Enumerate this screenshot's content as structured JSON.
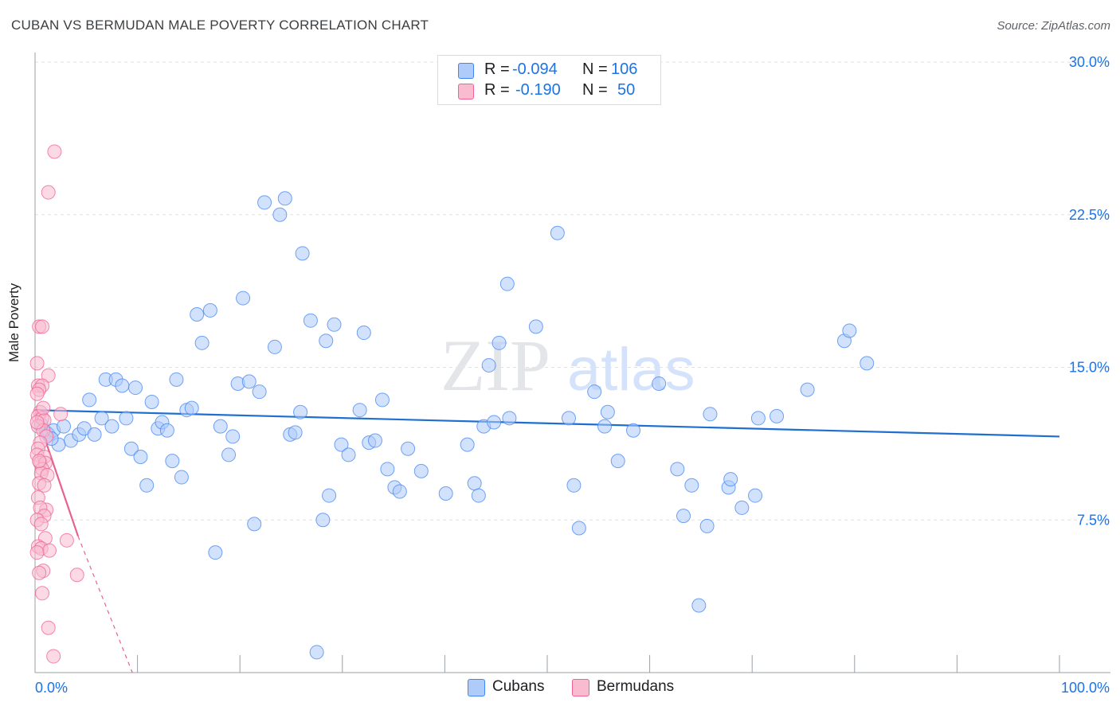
{
  "header": {
    "title": "CUBAN VS BERMUDAN MALE POVERTY CORRELATION CHART",
    "source": "Source: ZipAtlas.com"
  },
  "watermark": {
    "zip": "ZIP",
    "atlas": "atlas"
  },
  "legend": {
    "rows": [
      {
        "name": "Cubans",
        "r_label": "R =",
        "r_value": "-0.094",
        "n_label": "N =",
        "n_value": "106",
        "color": "#aecbfa"
      },
      {
        "name": "Bermudans",
        "r_label": "R =",
        "r_value": "-0.190",
        "n_label": "N =",
        "n_value": "50",
        "color": "#f8bbd0"
      }
    ]
  },
  "chart_data": {
    "type": "scatter",
    "title": "CUBAN VS BERMUDAN MALE POVERTY CORRELATION CHART",
    "xlabel": "",
    "ylabel": "Male Poverty",
    "xlim": [
      0,
      100
    ],
    "ylim": [
      0,
      30
    ],
    "x_tick_labels": [
      "0.0%",
      "100.0%"
    ],
    "y_ticks": [
      7.5,
      15,
      22.5,
      30
    ],
    "y_tick_labels": [
      "7.5%",
      "15.0%",
      "22.5%",
      "30.0%"
    ],
    "grid": "horizontal dashed",
    "legend_position": "top-center",
    "series": [
      {
        "name": "Cubans",
        "color": "#4285f4",
        "fill": "#aecbfa",
        "trend": {
          "x": [
            0,
            100
          ],
          "y": [
            12.9,
            11.6
          ],
          "color": "#1f6fd1"
        },
        "points": [
          [
            0.6,
            12.2
          ],
          [
            1.1,
            11.8
          ],
          [
            1.3,
            11.7
          ],
          [
            1.8,
            11.9
          ],
          [
            2.3,
            11.2
          ],
          [
            2.8,
            12.1
          ],
          [
            3.5,
            11.4
          ],
          [
            4.3,
            11.7
          ],
          [
            4.8,
            12.0
          ],
          [
            5.3,
            13.4
          ],
          [
            5.8,
            11.7
          ],
          [
            6.5,
            12.5
          ],
          [
            6.9,
            14.4
          ],
          [
            7.5,
            12.1
          ],
          [
            7.9,
            14.4
          ],
          [
            8.5,
            14.1
          ],
          [
            8.9,
            12.5
          ],
          [
            9.4,
            11.0
          ],
          [
            9.8,
            14.0
          ],
          [
            10.3,
            10.6
          ],
          [
            10.9,
            9.2
          ],
          [
            11.4,
            13.3
          ],
          [
            12.0,
            12.0
          ],
          [
            12.4,
            12.3
          ],
          [
            12.9,
            11.9
          ],
          [
            13.4,
            10.4
          ],
          [
            13.8,
            14.4
          ],
          [
            14.3,
            9.6
          ],
          [
            14.8,
            12.9
          ],
          [
            15.3,
            13.0
          ],
          [
            15.8,
            17.6
          ],
          [
            16.3,
            16.2
          ],
          [
            17.1,
            17.8
          ],
          [
            17.6,
            5.9
          ],
          [
            18.1,
            12.1
          ],
          [
            18.9,
            10.7
          ],
          [
            19.3,
            11.6
          ],
          [
            19.8,
            14.2
          ],
          [
            20.3,
            18.4
          ],
          [
            20.9,
            14.3
          ],
          [
            21.4,
            7.3
          ],
          [
            21.9,
            13.8
          ],
          [
            22.4,
            23.1
          ],
          [
            23.4,
            16.0
          ],
          [
            23.9,
            22.5
          ],
          [
            24.4,
            23.3
          ],
          [
            24.9,
            11.7
          ],
          [
            25.4,
            11.8
          ],
          [
            25.9,
            12.8
          ],
          [
            26.1,
            20.6
          ],
          [
            26.9,
            17.3
          ],
          [
            27.5,
            1.0
          ],
          [
            28.1,
            7.5
          ],
          [
            28.4,
            16.3
          ],
          [
            28.7,
            8.7
          ],
          [
            29.2,
            17.1
          ],
          [
            29.9,
            11.2
          ],
          [
            30.6,
            10.7
          ],
          [
            31.7,
            12.9
          ],
          [
            32.1,
            16.7
          ],
          [
            32.6,
            11.3
          ],
          [
            33.2,
            11.4
          ],
          [
            33.9,
            13.4
          ],
          [
            34.4,
            10.0
          ],
          [
            35.1,
            9.1
          ],
          [
            35.6,
            8.9
          ],
          [
            36.4,
            11.0
          ],
          [
            37.7,
            9.9
          ],
          [
            40.1,
            8.8
          ],
          [
            42.2,
            11.2
          ],
          [
            42.9,
            9.3
          ],
          [
            43.3,
            8.7
          ],
          [
            43.8,
            12.1
          ],
          [
            44.3,
            15.1
          ],
          [
            44.8,
            12.3
          ],
          [
            45.3,
            16.2
          ],
          [
            46.1,
            19.1
          ],
          [
            46.3,
            12.5
          ],
          [
            48.9,
            17.0
          ],
          [
            51.0,
            21.6
          ],
          [
            52.1,
            12.5
          ],
          [
            52.6,
            9.2
          ],
          [
            53.1,
            7.1
          ],
          [
            54.6,
            13.8
          ],
          [
            55.6,
            12.1
          ],
          [
            55.9,
            12.8
          ],
          [
            56.9,
            10.4
          ],
          [
            58.4,
            11.9
          ],
          [
            60.9,
            14.2
          ],
          [
            62.7,
            10.0
          ],
          [
            63.3,
            7.7
          ],
          [
            64.1,
            9.2
          ],
          [
            64.8,
            3.3
          ],
          [
            65.6,
            7.2
          ],
          [
            65.9,
            12.7
          ],
          [
            67.7,
            9.1
          ],
          [
            67.9,
            9.5
          ],
          [
            69.0,
            8.1
          ],
          [
            70.3,
            8.7
          ],
          [
            70.6,
            12.5
          ],
          [
            72.4,
            12.6
          ],
          [
            75.4,
            13.9
          ],
          [
            79.0,
            16.3
          ],
          [
            79.5,
            16.8
          ],
          [
            81.2,
            15.2
          ],
          [
            1.6,
            11.5
          ]
        ]
      },
      {
        "name": "Bermudans",
        "color": "#f06292",
        "fill": "#f8bbd0",
        "trend": {
          "x": [
            0,
            4.2
          ],
          "y": [
            12.9,
            6.7
          ],
          "dash_to": [
            9.5,
            0
          ],
          "color": "#e8628f"
        },
        "points": [
          [
            1.9,
            25.6
          ],
          [
            1.3,
            23.6
          ],
          [
            0.4,
            17.0
          ],
          [
            0.7,
            17.0
          ],
          [
            0.2,
            15.2
          ],
          [
            1.3,
            14.6
          ],
          [
            0.3,
            14.1
          ],
          [
            0.7,
            14.1
          ],
          [
            0.4,
            13.9
          ],
          [
            0.2,
            13.7
          ],
          [
            2.5,
            12.7
          ],
          [
            0.5,
            12.8
          ],
          [
            0.3,
            12.6
          ],
          [
            0.7,
            12.5
          ],
          [
            0.9,
            12.4
          ],
          [
            0.3,
            12.1
          ],
          [
            0.8,
            11.9
          ],
          [
            1.1,
            11.6
          ],
          [
            0.5,
            11.3
          ],
          [
            0.3,
            11.0
          ],
          [
            0.2,
            10.7
          ],
          [
            0.9,
            10.6
          ],
          [
            0.5,
            10.3
          ],
          [
            1.0,
            10.3
          ],
          [
            0.7,
            10.0
          ],
          [
            0.6,
            9.8
          ],
          [
            1.2,
            9.7
          ],
          [
            0.4,
            9.3
          ],
          [
            0.9,
            9.2
          ],
          [
            0.3,
            8.6
          ],
          [
            1.1,
            8.0
          ],
          [
            0.5,
            8.1
          ],
          [
            0.9,
            7.7
          ],
          [
            0.2,
            7.5
          ],
          [
            0.6,
            7.3
          ],
          [
            1.0,
            6.6
          ],
          [
            3.1,
            6.5
          ],
          [
            0.3,
            6.2
          ],
          [
            0.6,
            6.1
          ],
          [
            1.4,
            6.0
          ],
          [
            0.2,
            5.9
          ],
          [
            0.8,
            5.0
          ],
          [
            0.4,
            4.9
          ],
          [
            4.1,
            4.8
          ],
          [
            0.7,
            3.9
          ],
          [
            1.3,
            2.2
          ],
          [
            1.8,
            0.8
          ],
          [
            0.4,
            10.4
          ],
          [
            0.2,
            12.3
          ],
          [
            0.8,
            13.0
          ]
        ]
      }
    ]
  }
}
